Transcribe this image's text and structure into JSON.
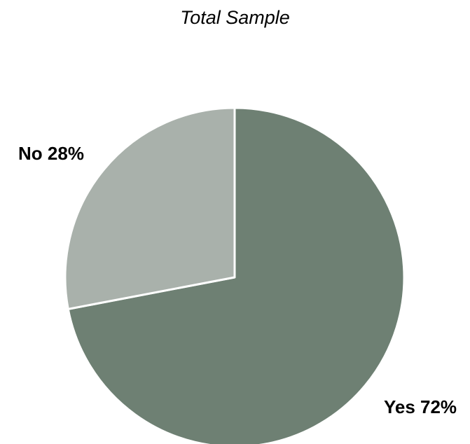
{
  "chart_data": {
    "type": "pie",
    "title": "Total Sample",
    "slices": [
      {
        "label": "Yes",
        "value": 72,
        "display": "Yes 72%",
        "color": "#6e8073"
      },
      {
        "label": "No",
        "value": 28,
        "display": "No 28%",
        "color": "#a9b1ab"
      }
    ],
    "start_angle_deg": 0,
    "direction": "clockwise",
    "slice_border_color": "#ffffff"
  }
}
